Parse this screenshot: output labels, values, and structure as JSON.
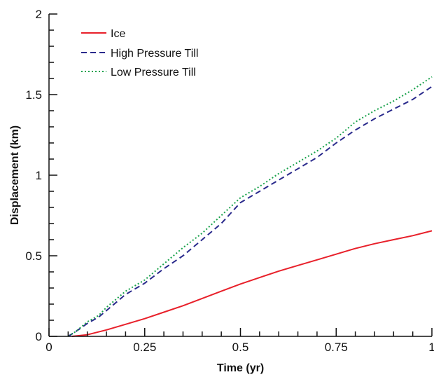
{
  "chart_data": {
    "type": "line",
    "title": "",
    "xlabel": "Time (yr)",
    "ylabel": "Displacement (km)",
    "xlim": [
      0,
      1
    ],
    "ylim": [
      0,
      2
    ],
    "xticks": [
      0,
      0.25,
      0.5,
      0.75,
      1
    ],
    "xtick_labels": [
      "0",
      "0.25",
      "0.5",
      "0.75",
      "1"
    ],
    "yticks": [
      0,
      0.5,
      1,
      1.5,
      2
    ],
    "ytick_labels": [
      "0",
      "0.5",
      "1",
      "1.5",
      "2"
    ],
    "grid": false,
    "legend_position": "top-left",
    "series": [
      {
        "name": "Ice",
        "color": "#e8202a",
        "style": "solid",
        "x": [
          0.06,
          0.1,
          0.15,
          0.2,
          0.25,
          0.3,
          0.35,
          0.4,
          0.45,
          0.5,
          0.55,
          0.6,
          0.65,
          0.7,
          0.75,
          0.8,
          0.85,
          0.9,
          0.95,
          1.0
        ],
        "y": [
          0.0,
          0.01,
          0.04,
          0.075,
          0.11,
          0.15,
          0.19,
          0.235,
          0.28,
          0.325,
          0.365,
          0.405,
          0.44,
          0.475,
          0.51,
          0.545,
          0.575,
          0.6,
          0.625,
          0.655
        ]
      },
      {
        "name": "High Pressure Till",
        "color": "#2a2a8c",
        "style": "dashed",
        "x": [
          0.05,
          0.07,
          0.1,
          0.13,
          0.15,
          0.18,
          0.2,
          0.25,
          0.3,
          0.35,
          0.4,
          0.45,
          0.5,
          0.55,
          0.6,
          0.65,
          0.7,
          0.75,
          0.8,
          0.85,
          0.9,
          0.95,
          1.0
        ],
        "y": [
          0.0,
          0.03,
          0.08,
          0.12,
          0.16,
          0.22,
          0.26,
          0.33,
          0.42,
          0.5,
          0.6,
          0.7,
          0.83,
          0.9,
          0.97,
          1.04,
          1.11,
          1.2,
          1.28,
          1.35,
          1.41,
          1.47,
          1.55
        ]
      },
      {
        "name": "Low Pressure Till",
        "color": "#1aa24c",
        "style": "dotted",
        "x": [
          0.05,
          0.07,
          0.1,
          0.13,
          0.15,
          0.18,
          0.2,
          0.25,
          0.3,
          0.35,
          0.4,
          0.45,
          0.5,
          0.55,
          0.6,
          0.65,
          0.7,
          0.75,
          0.8,
          0.85,
          0.9,
          0.95,
          1.0
        ],
        "y": [
          0.0,
          0.03,
          0.09,
          0.13,
          0.18,
          0.24,
          0.28,
          0.35,
          0.45,
          0.55,
          0.64,
          0.75,
          0.86,
          0.93,
          1.01,
          1.08,
          1.15,
          1.23,
          1.33,
          1.4,
          1.46,
          1.53,
          1.61
        ]
      }
    ]
  }
}
